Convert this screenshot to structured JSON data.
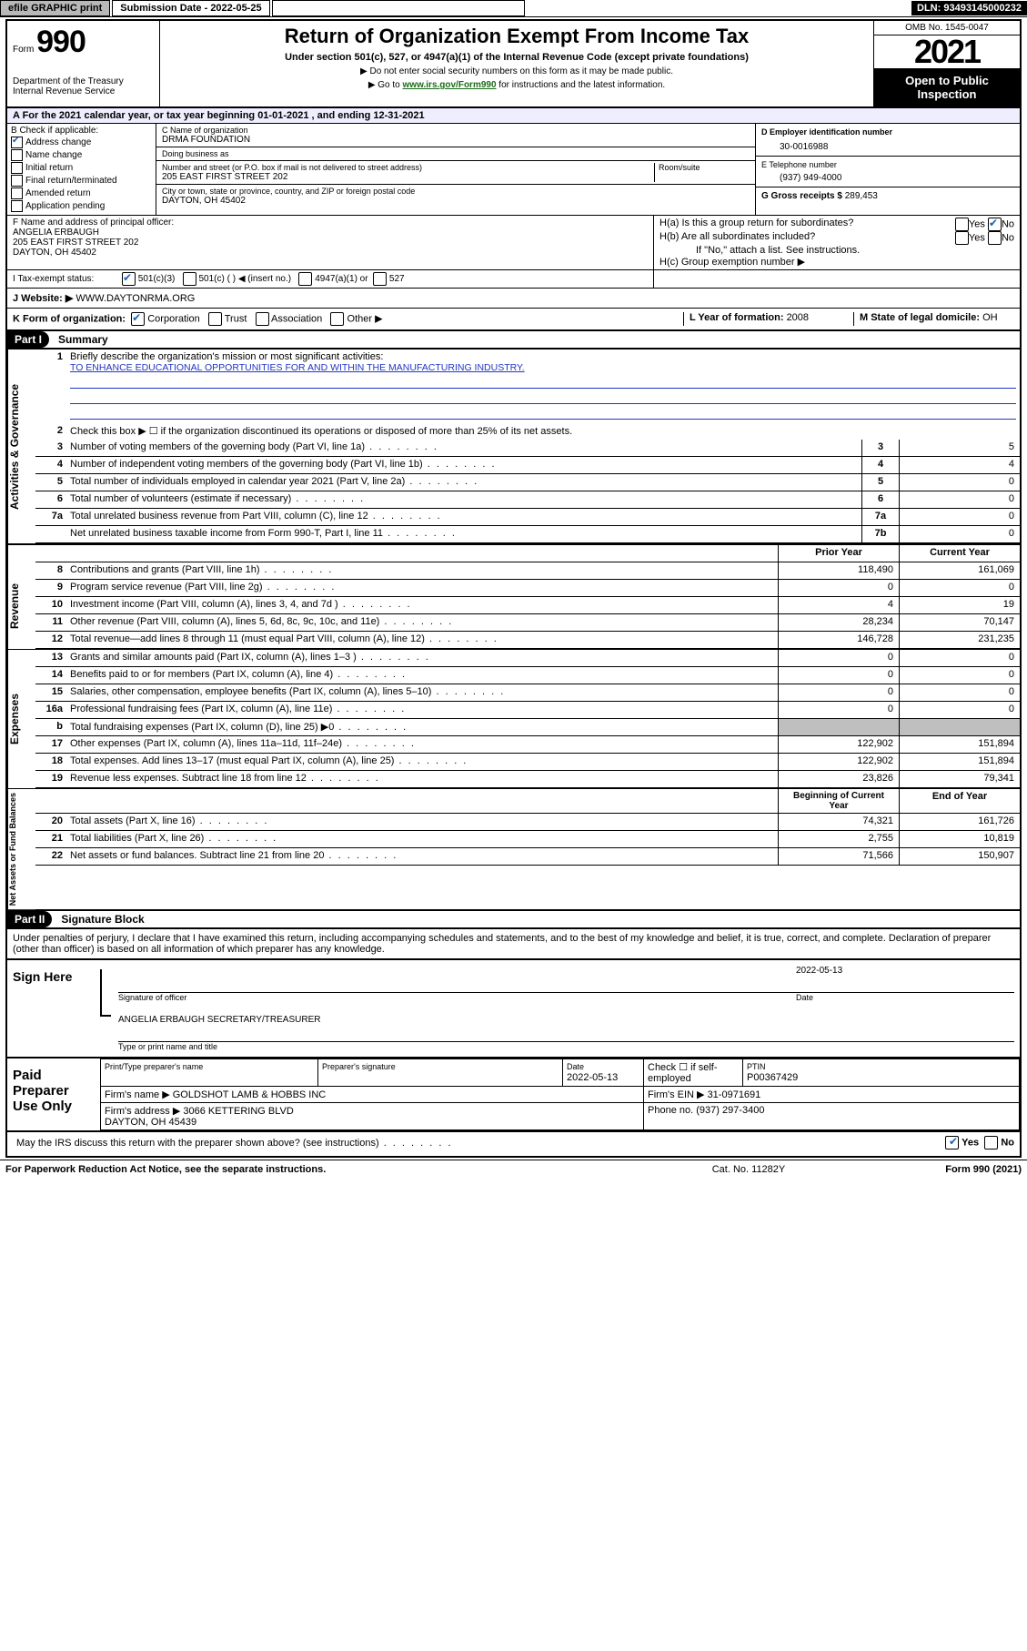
{
  "top": {
    "efile": "efile GRAPHIC print",
    "submission_label": "Submission Date - 2022-05-25",
    "dln": "DLN: 93493145000232"
  },
  "header": {
    "form_prefix": "Form",
    "form_num": "990",
    "dept": "Department of the Treasury\nInternal Revenue Service",
    "title": "Return of Organization Exempt From Income Tax",
    "subtitle": "Under section 501(c), 527, or 4947(a)(1) of the Internal Revenue Code (except private foundations)",
    "note1": "▶ Do not enter social security numbers on this form as it may be made public.",
    "note2_pre": "▶ Go to ",
    "note2_link": "www.irs.gov/Form990",
    "note2_post": " for instructions and the latest information.",
    "omb": "OMB No. 1545-0047",
    "year": "2021",
    "open": "Open to Public Inspection"
  },
  "section_a": "A For the 2021 calendar year, or tax year beginning 01-01-2021    , and ending 12-31-2021",
  "col_b": {
    "label": "B Check if applicable:",
    "items": [
      {
        "l": "Address change",
        "c": true
      },
      {
        "l": "Name change",
        "c": false
      },
      {
        "l": "Initial return",
        "c": false
      },
      {
        "l": "Final return/terminated",
        "c": false
      },
      {
        "l": "Amended return",
        "c": false
      },
      {
        "l": "Application pending",
        "c": false
      }
    ]
  },
  "col_c": {
    "name_label": "C Name of organization",
    "name": "DRMA FOUNDATION",
    "dba_label": "Doing business as",
    "dba": "",
    "addr_label": "Number and street (or P.O. box if mail is not delivered to street address)",
    "room_label": "Room/suite",
    "addr": "205 EAST FIRST STREET 202",
    "city_label": "City or town, state or province, country, and ZIP or foreign postal code",
    "city": "DAYTON, OH  45402"
  },
  "col_d": {
    "label": "D Employer identification number",
    "val": "30-0016988"
  },
  "col_e": {
    "label": "E Telephone number",
    "val": "(937) 949-4000"
  },
  "col_g": {
    "label": "G Gross receipts $ ",
    "val": "289,453"
  },
  "col_f": {
    "label": "F  Name and address of principal officer:",
    "name": "ANGELIA ERBAUGH",
    "addr1": "205 EAST FIRST STREET 202",
    "addr2": "DAYTON, OH  45402"
  },
  "col_h": {
    "a": "H(a)  Is this a group return for subordinates?",
    "a_yes": "Yes",
    "a_no": "No",
    "b": "H(b)  Are all subordinates included?",
    "b_note": "If \"No,\" attach a list. See instructions.",
    "c": "H(c)   Group exemption number ▶"
  },
  "row_i": {
    "label": "I    Tax-exempt status:",
    "opts": [
      "501(c)(3)",
      "501(c) (   ) ◀ (insert no.)",
      "4947(a)(1) or",
      "527"
    ]
  },
  "row_j": {
    "label": "J   Website: ▶ ",
    "val": "WWW.DAYTONRMA.ORG"
  },
  "row_k": {
    "label": "K Form of organization:",
    "opts": [
      "Corporation",
      "Trust",
      "Association",
      "Other ▶"
    ],
    "l_label": "L Year of formation: ",
    "l_val": "2008",
    "m_label": "M State of legal domicile: ",
    "m_val": "OH"
  },
  "part1": {
    "hdr": "Part I",
    "title": "Summary",
    "line1": "Briefly describe the organization's mission or most significant activities:",
    "mission": "TO ENHANCE EDUCATIONAL OPPORTUNITIES FOR AND WITHIN THE MANUFACTURING INDUSTRY.",
    "line2": "Check this box ▶ ☐  if the organization discontinued its operations or disposed of more than 25% of its net assets.",
    "gov_lines": [
      {
        "n": "3",
        "t": "Number of voting members of the governing body (Part VI, line 1a)",
        "box": "3",
        "v": "5"
      },
      {
        "n": "4",
        "t": "Number of independent voting members of the governing body (Part VI, line 1b)",
        "box": "4",
        "v": "4"
      },
      {
        "n": "5",
        "t": "Total number of individuals employed in calendar year 2021 (Part V, line 2a)",
        "box": "5",
        "v": "0"
      },
      {
        "n": "6",
        "t": "Total number of volunteers (estimate if necessary)",
        "box": "6",
        "v": "0"
      },
      {
        "n": "7a",
        "t": "Total unrelated business revenue from Part VIII, column (C), line 12",
        "box": "7a",
        "v": "0"
      },
      {
        "n": "",
        "t": "Net unrelated business taxable income from Form 990-T, Part I, line 11",
        "box": "7b",
        "v": "0"
      }
    ],
    "py_hdr": "Prior Year",
    "cy_hdr": "Current Year",
    "rev_lines": [
      {
        "n": "8",
        "t": "Contributions and grants (Part VIII, line 1h)",
        "py": "118,490",
        "cy": "161,069"
      },
      {
        "n": "9",
        "t": "Program service revenue (Part VIII, line 2g)",
        "py": "0",
        "cy": "0"
      },
      {
        "n": "10",
        "t": "Investment income (Part VIII, column (A), lines 3, 4, and 7d )",
        "py": "4",
        "cy": "19"
      },
      {
        "n": "11",
        "t": "Other revenue (Part VIII, column (A), lines 5, 6d, 8c, 9c, 10c, and 11e)",
        "py": "28,234",
        "cy": "70,147"
      },
      {
        "n": "12",
        "t": "Total revenue—add lines 8 through 11 (must equal Part VIII, column (A), line 12)",
        "py": "146,728",
        "cy": "231,235"
      }
    ],
    "exp_lines": [
      {
        "n": "13",
        "t": "Grants and similar amounts paid (Part IX, column (A), lines 1–3 )",
        "py": "0",
        "cy": "0"
      },
      {
        "n": "14",
        "t": "Benefits paid to or for members (Part IX, column (A), line 4)",
        "py": "0",
        "cy": "0"
      },
      {
        "n": "15",
        "t": "Salaries, other compensation, employee benefits (Part IX, column (A), lines 5–10)",
        "py": "0",
        "cy": "0"
      },
      {
        "n": "16a",
        "t": "Professional fundraising fees (Part IX, column (A), line 11e)",
        "py": "0",
        "cy": "0"
      },
      {
        "n": "b",
        "t": "Total fundraising expenses (Part IX, column (D), line 25) ▶0",
        "py": "GREY",
        "cy": "GREY"
      },
      {
        "n": "17",
        "t": "Other expenses (Part IX, column (A), lines 11a–11d, 11f–24e)",
        "py": "122,902",
        "cy": "151,894"
      },
      {
        "n": "18",
        "t": "Total expenses. Add lines 13–17 (must equal Part IX, column (A), line 25)",
        "py": "122,902",
        "cy": "151,894"
      },
      {
        "n": "19",
        "t": "Revenue less expenses. Subtract line 18 from line 12",
        "py": "23,826",
        "cy": "79,341"
      }
    ],
    "na_hdr1": "Beginning of Current Year",
    "na_hdr2": "End of Year",
    "na_lines": [
      {
        "n": "20",
        "t": "Total assets (Part X, line 16)",
        "py": "74,321",
        "cy": "161,726"
      },
      {
        "n": "21",
        "t": "Total liabilities (Part X, line 26)",
        "py": "2,755",
        "cy": "10,819"
      },
      {
        "n": "22",
        "t": "Net assets or fund balances. Subtract line 21 from line 20",
        "py": "71,566",
        "cy": "150,907"
      }
    ]
  },
  "part2": {
    "hdr": "Part II",
    "title": "Signature Block",
    "decl": "Under penalties of perjury, I declare that I have examined this return, including accompanying schedules and statements, and to the best of my knowledge and belief, it is true, correct, and complete. Declaration of preparer (other than officer) is based on all information of which preparer has any knowledge.",
    "sign_here": "Sign Here",
    "sig_officer": "Signature of officer",
    "sig_date": "2022-05-13",
    "date_l": "Date",
    "officer_name": "ANGELIA ERBAUGH  SECRETARY/TREASURER",
    "type_name": "Type or print name and title",
    "paid": "Paid Preparer Use Only",
    "pt_name_l": "Print/Type preparer's name",
    "pt_sig_l": "Preparer's signature",
    "pt_date": "2022-05-13",
    "pt_check": "Check ☐ if self-employed",
    "ptin_l": "PTIN",
    "ptin": "P00367429",
    "firm_name_l": "Firm's name     ▶",
    "firm_name": "GOLDSHOT LAMB & HOBBS INC",
    "firm_ein_l": "Firm's EIN ▶",
    "firm_ein": "31-0971691",
    "firm_addr_l": "Firm's address ▶",
    "firm_addr": "3066 KETTERING BLVD\nDAYTON, OH  45439",
    "phone_l": "Phone no. ",
    "phone": "(937) 297-3400",
    "discuss": "May the IRS discuss this return with the preparer shown above? (see instructions)",
    "d_yes": "Yes",
    "d_no": "No"
  },
  "footer": {
    "l": "For Paperwork Reduction Act Notice, see the separate instructions.",
    "c": "Cat. No. 11282Y",
    "r": "Form 990 (2021)"
  },
  "sides": {
    "gov": "Activities & Governance",
    "rev": "Revenue",
    "exp": "Expenses",
    "na": "Net Assets or Fund Balances"
  }
}
